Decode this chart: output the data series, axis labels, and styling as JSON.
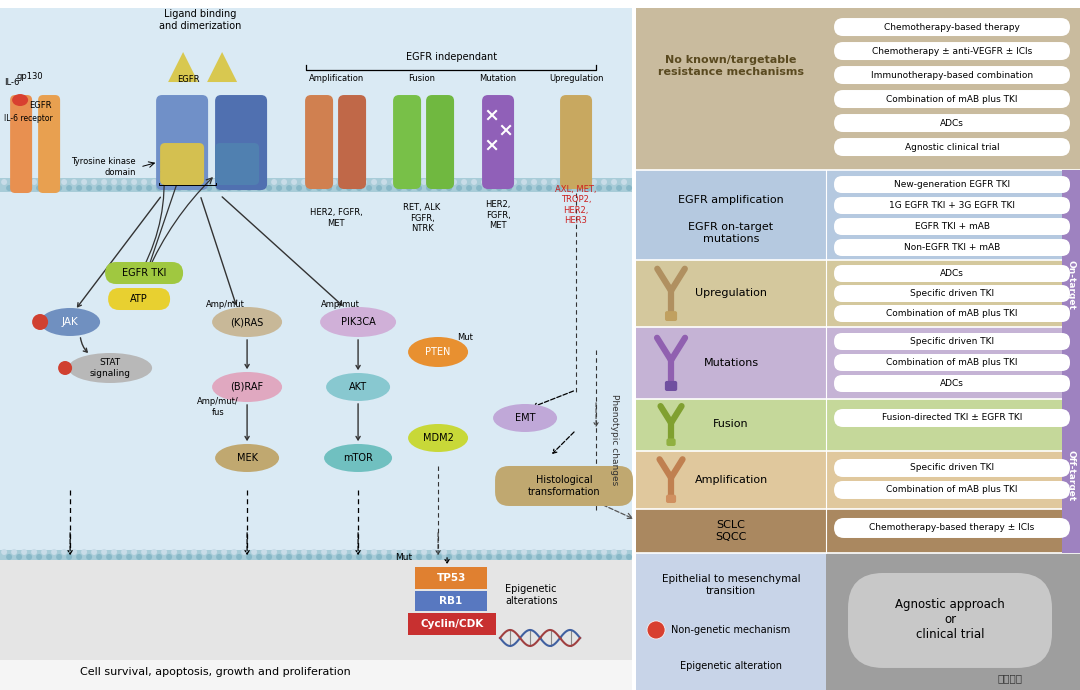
{
  "fig_width": 10.8,
  "fig_height": 6.9,
  "no_known_title": "No known/targetable\nresistance mechanisms",
  "no_known_treatments": [
    "Chemotherapy-based therapy",
    "Chemotherapy ± anti-VEGFR ± ICIs",
    "Immunotherapy-based combination",
    "Combination of mAB plus TKI",
    "ADCs",
    "Agnostic clinical trial"
  ],
  "egfr_amp_label": "EGFR amplification",
  "egfr_mut_label": "EGFR on-target\nmutations",
  "egfr_treatments": [
    "New-generation EGFR TKI",
    "1G EGFR TKI + 3G EGFR TKI",
    "EGFR TKI + mAB",
    "Non-EGFR TKI + mAB"
  ],
  "upregulation_label": "Upregulation",
  "upregulation_treatments": [
    "ADCs",
    "Specific driven TKI",
    "Combination of mAB plus TKI"
  ],
  "mutations_label": "Mutations",
  "mutations_treatments": [
    "Specific driven TKI",
    "Combination of mAB plus TKI",
    "ADCs"
  ],
  "fusion_label": "Fusion",
  "fusion_treatments": [
    "Fusion-directed TKI ± EGFR TKI"
  ],
  "amplification_label": "Amplification",
  "amplification_treatments": [
    "Specific driven TKI",
    "Combination of mAB plus TKI"
  ],
  "sclc_label": "SCLC\nSQCC",
  "sclc_treatments": [
    "Chemotherapy-based therapy ± ICIs"
  ],
  "emt_label": "Epithelial to mesenchymal\ntransition",
  "nongenetic_label": "Non-genetic mechanism",
  "epigenetic_label": "Epigenetic alteration",
  "agnostic_label": "Agnostic approach\nor\nclinical trial",
  "on_target_label": "On-target",
  "off_target_label": "Off-target",
  "cell_survival_label": "Cell survival, apoptosis, growth and proliferation",
  "phenotypic_label": "Phenotypic changes",
  "ligand_label": "Ligand binding\nand dimerization",
  "egfr_indep_label": "EGFR independant",
  "amp_rec_label": "Amplification",
  "fus_rec_label": "Fusion",
  "mut_rec_label": "Mutation",
  "upreg_rec_label": "Upregulation",
  "her2_fgfr_met": "HER2, FGFR,\nMET",
  "ret_alk": "RET, ALK\nFGFR,\nNTRK",
  "her2_fgfr_met2": "HER2,\nFGFR,\nMET",
  "axl_met": "AXL, MET,\nTROP2,\nHER2,\nHER3",
  "colors": {
    "cell_bg": "#daeaf4",
    "nucleus_bg": "#e5e5e5",
    "top_tan": "#c9bb9e",
    "on_target_blue": "#b5c9e0",
    "upregulation_tan": "#d4c89d",
    "mutations_purple": "#c5b3d5",
    "fusion_green": "#c5d89a",
    "amplification_peach": "#e0c89d",
    "sclc_brown": "#aa8860",
    "bottom_lavender": "#c8d4e8",
    "agnostic_grey": "#9e9e9e",
    "on_target_bar": "#9e82c0",
    "off_target_bar": "#9e82c0",
    "jak_blue": "#7090c0",
    "stat_grey": "#b8b8b8",
    "kras_tan": "#c8b898",
    "braf_pink": "#e0a8c0",
    "mek_tan": "#c0a870",
    "pik3ca_lavender": "#d0b0d8",
    "akt_cyan": "#88c8d0",
    "mtor_teal": "#70c0c0",
    "pten_orange": "#e89030",
    "mdm2_yellow": "#c8d838",
    "emt_lavender": "#c0a8d8",
    "hist_tan": "#c0a870",
    "egfr_tki_green": "#a0c840",
    "atp_yellow": "#e8d030",
    "tp53_orange": "#e08030",
    "rb1_blue": "#5878c0",
    "cyclin_red": "#c83030",
    "membrane_color": "#8bbcca",
    "il6r_orange": "#e89050",
    "gp130_orange": "#e8a050",
    "egfr_blue1": "#7090c8",
    "egfr_blue2": "#5070b0",
    "tk_yellow": "#d4c050",
    "tk_blue": "#5080b0",
    "ligand_yellow": "#d8c850",
    "amp_receptor": "#d08050",
    "amp_receptor2": "#c86848",
    "fus_receptor": "#78c048",
    "mut_receptor": "#9060b0",
    "upreg_receptor": "#c8a860"
  }
}
